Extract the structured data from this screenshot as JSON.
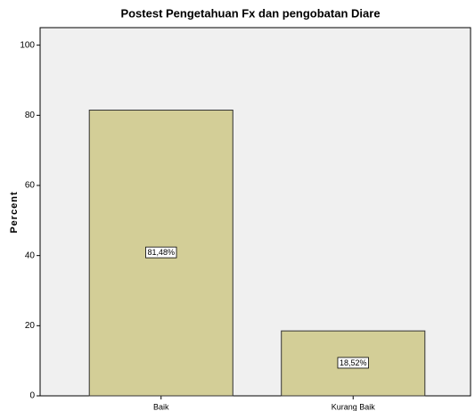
{
  "chart_data": {
    "type": "bar",
    "title": "Postest Pengetahuan Fx dan pengobatan Diare",
    "y_label": "Percent",
    "categories": [
      "Baik",
      "Kurang Baik"
    ],
    "values": [
      81.48,
      18.52
    ],
    "value_labels": [
      "81,48%",
      "18,52%"
    ],
    "color": "#d3ce97",
    "ylim": [
      0,
      105
    ],
    "yticks": [
      0,
      20,
      40,
      60,
      80,
      100
    ],
    "grid": false
  }
}
